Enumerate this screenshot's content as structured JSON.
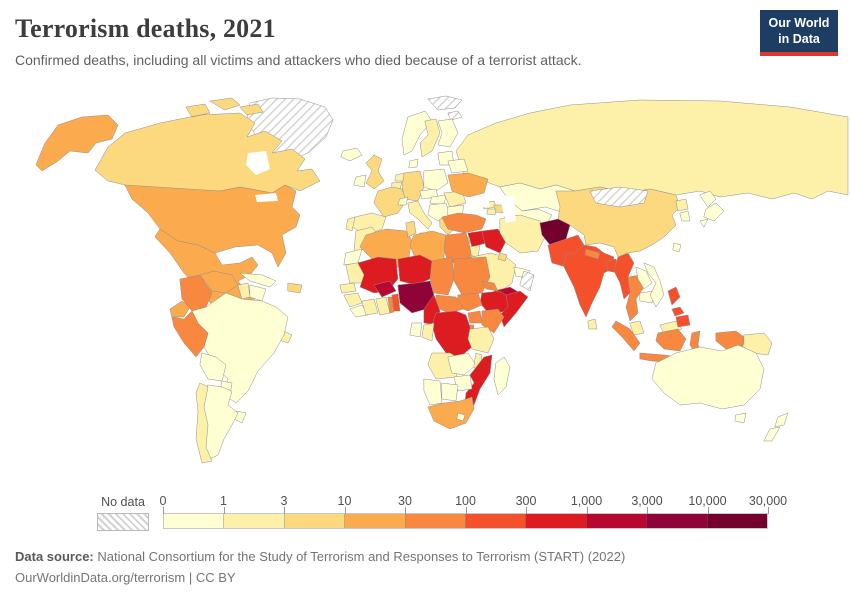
{
  "header": {
    "title": "Terrorism deaths, 2021",
    "subtitle": "Confirmed deaths, including all victims and attackers who died because of a terrorist attack.",
    "logo": {
      "line1": "Our World",
      "line2": "in Data",
      "bg_color": "#1d3d63",
      "accent_color": "#e0362c"
    }
  },
  "legend": {
    "no_data_label": "No data",
    "tick_labels": [
      "0",
      "1",
      "3",
      "10",
      "30",
      "100",
      "300",
      "1,000",
      "3,000",
      "10,000",
      "30,000"
    ]
  },
  "footer": {
    "source_label": "Data source:",
    "source_text": " National Consortium for the Study of Terrorism and Responses to Terrorism (START) (2022)",
    "link_text": "OurWorldinData.org/terrorism",
    "separator": " | ",
    "license_text": "CC BY"
  },
  "chart_data": {
    "type": "heatmap",
    "subtype": "choropleth-world-map",
    "title": "Terrorism deaths, 2021",
    "unit": "confirmed deaths",
    "year": 2021,
    "scale": "logarithmic bins",
    "legend_position": "bottom",
    "no_data": {
      "label": "No data",
      "style": "diagonal-hatch"
    },
    "bins": [
      {
        "label": "0-1",
        "color": "#ffffd4"
      },
      {
        "label": "1-3",
        "color": "#fdf0a9"
      },
      {
        "label": "3-10",
        "color": "#fcd87f"
      },
      {
        "label": "10-30",
        "color": "#fbab4d"
      },
      {
        "label": "30-100",
        "color": "#f8873f"
      },
      {
        "label": "100-300",
        "color": "#f4502b"
      },
      {
        "label": "300-1,000",
        "color": "#dd1c21"
      },
      {
        "label": "1,000-3,000",
        "color": "#b80731"
      },
      {
        "label": "3,000-10,000",
        "color": "#8f0339"
      },
      {
        "label": "10,000-30,000",
        "color": "#73002d"
      }
    ],
    "countries": {
      "Greenland": "No data",
      "Mongolia": "No data",
      "Oman": "No data",
      "Svalbard": "No data",
      "Canada": "3-10",
      "United States": "10-30",
      "Alaska": "10-30",
      "Mexico": "10-30",
      "Guatemala": "1-3",
      "Honduras": "0-1",
      "Costa Rica & Panama": "1-3",
      "Cuba": "0-1",
      "Hispaniola": "3-10",
      "Colombia": "30-100",
      "Venezuela": "10-30",
      "Guyana": "1-3",
      "Suriname": "0-1",
      "Ecuador": "10-30",
      "Peru": "30-100",
      "Brazil": "0-1",
      "Bolivia": "0-1",
      "Paraguay": "0-1",
      "Uruguay": "0-1",
      "Chile": "1-3",
      "Argentina": "0-1",
      "Iceland": "0-1",
      "Ireland": "0-1",
      "United Kingdom": "3-10",
      "Norway": "0-1",
      "Sweden": "1-3",
      "Finland": "0-1",
      "Denmark": "0-1",
      "Baltics": "0-1",
      "Netherlands": "1-3",
      "Belgium": "1-3",
      "Germany": "3-10",
      "Poland": "0-1",
      "Belarus": "0-1",
      "Ukraine": "10-30",
      "France": "3-10",
      "Spain": "1-3",
      "Portugal": "1-3",
      "Italy": "1-3",
      "Switzerland": "0-1",
      "Austria & Czechia": "0-1",
      "Hungary & Slovakia": "0-1",
      "Balkans": "0-1",
      "Romania": "1-3",
      "Bulgaria": "0-1",
      "Greece": "3-10",
      "Russia": "1-3",
      "Kazakhstan": "0-1",
      "Uzbekistan": "0-1",
      "Turkmenistan": "0-1",
      "Kyrgyzstan": "1-3",
      "Tajikistan": "10-30",
      "Georgia": "1-3",
      "Azerbaijan": "3-10",
      "Armenia": "1-3",
      "Turkey": "30-100",
      "Cyprus": "0-1",
      "Syria": "300-1,000",
      "Lebanon": "3-10",
      "Israel": "10-30",
      "Jordan": "1-3",
      "Iraq": "300-1,000",
      "Iran": "1-3",
      "Saudi Arabia": "1-3",
      "Kuwait": "3-10",
      "Qatar & UAE": "0-1",
      "Yemen": "1,000-3,000",
      "Afghanistan": "10,000-30,000",
      "Pakistan": "100-300",
      "India": "100-300",
      "Nepal": "30-100",
      "Bangladesh": "100-300",
      "Sri Lanka": "1-3",
      "Myanmar": "100-300",
      "Thailand": "30-100",
      "Laos": "0-1",
      "Cambodia": "0-1",
      "Vietnam": "0-1",
      "Malaysia": "1-3",
      "Indonesia": "30-100",
      "Philippines": "100-300",
      "Papua New Guinea": "1-3",
      "China": "3-10",
      "North Korea": "1-3",
      "South Korea": "0-1",
      "Japan": "0-1",
      "Taiwan": "0-1",
      "Australia": "0-1",
      "New Zealand": "0-1",
      "Morocco": "1-3",
      "Western Sahara": "0-1",
      "Algeria": "10-30",
      "Tunisia": "3-10",
      "Libya": "10-30",
      "Egypt": "30-100",
      "Mauritania": "1-3",
      "Senegal": "1-3",
      "Guinea": "1-3",
      "Sierra Leone & Liberia": "0-1",
      "Ivory Coast": "1-3",
      "Ghana": "1-3",
      "Togo": "30-100",
      "Benin": "100-300",
      "Mali": "300-1,000",
      "Burkina Faso": "1,000-3,000",
      "Niger": "300-1,000",
      "Nigeria": "3,000-10,000",
      "Chad": "30-100",
      "Sudan": "30-100",
      "Eritrea": "30-100",
      "Ethiopia": "300-1,000",
      "Somalia": "300-1,000",
      "South Sudan": "30-100",
      "Central African Republic": "30-100",
      "Cameroon": "300-1,000",
      "Uganda": "30-100",
      "Kenya": "30-100",
      "Rwanda & Burundi": "30-100",
      "DR Congo": "300-1,000",
      "Congo": "1-3",
      "Gabon": "0-1",
      "Tanzania": "1-3",
      "Angola": "1-3",
      "Zambia": "0-1",
      "Malawi": "1-3",
      "Mozambique": "300-1,000",
      "Zimbabwe": "0-1",
      "Botswana": "0-1",
      "Namibia": "0-1",
      "South Africa": "10-30",
      "Lesotho": "0-1",
      "Madagascar": "0-1"
    }
  }
}
